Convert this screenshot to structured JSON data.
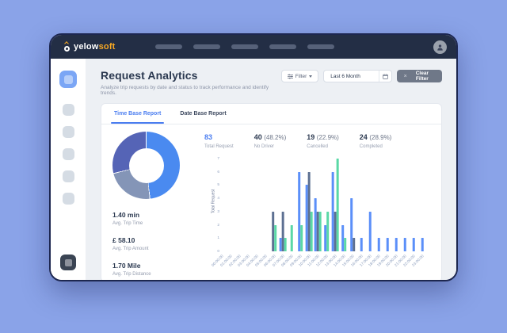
{
  "topbar": {
    "brand_first": "yelow",
    "brand_second": "soft",
    "nav_placeholder_count": 5
  },
  "sidebar": {
    "items": [
      "active",
      "default",
      "default",
      "default",
      "default",
      "default",
      "dark"
    ]
  },
  "header": {
    "title": "Request Analytics",
    "subtitle": "Analyze trip requests by date and status to track performance and identify trends.",
    "filter_label": "Filter",
    "date_range_value": "Last 6 Month",
    "clear_filter_label": "Clear Filter",
    "clear_filter_x": "×"
  },
  "tabs": [
    {
      "label": "Time Base Report",
      "active": true
    },
    {
      "label": "Date Base Report",
      "active": false
    }
  ],
  "stats": [
    {
      "value": "83",
      "pct": "",
      "label": "Total Request",
      "highlight": true
    },
    {
      "value": "40",
      "pct": "(48.2%)",
      "label": "No Driver",
      "highlight": false
    },
    {
      "value": "19",
      "pct": "(22.9%)",
      "label": "Cancelled",
      "highlight": false
    },
    {
      "value": "24",
      "pct": "(28.9%)",
      "label": "Completed",
      "highlight": false
    }
  ],
  "metrics": [
    {
      "value": "1.40 min",
      "label": "Avg. Trip Time"
    },
    {
      "value": "£ 58.10",
      "label": "Avg. Trip Amount"
    },
    {
      "value": "1.70 Mile",
      "label": "Avg. Trip Distance"
    }
  ],
  "colors": {
    "accent_blue": "#4a7df0",
    "navy_text": "#2b3950",
    "muted_text": "#98a0b2"
  },
  "chart_data": [
    {
      "type": "pie",
      "title": "Request status share (donut)",
      "slices": [
        {
          "label": "No Driver",
          "value": 48.2,
          "color": "#4a8af0"
        },
        {
          "label": "Cancelled",
          "value": 22.9,
          "color": "#8495b7"
        },
        {
          "label": "Completed",
          "value": 28.9,
          "color": "#5564b6"
        }
      ]
    },
    {
      "type": "bar",
      "title": "Requests by hour",
      "ylabel": "Total Request",
      "ylim": [
        0,
        7
      ],
      "yticks": [
        0,
        1,
        2,
        3,
        4,
        5,
        6,
        7
      ],
      "grid": false,
      "legend": "none",
      "categories": [
        "00:00:00",
        "01:00:00",
        "02:00:00",
        "03:00:00",
        "04:00:00",
        "05:00:00",
        "06:00:00",
        "07:00:00",
        "08:00:00",
        "09:00:00",
        "10:00:00",
        "11:00:00",
        "12:00:00",
        "13:00:00",
        "14:00:00",
        "15:00:00",
        "16:00:00",
        "17:00:00",
        "18:00:00",
        "19:00:00",
        "20:00:00",
        "21:00:00",
        "22:00:00",
        "23:00:00"
      ],
      "series": [
        {
          "name": "No Driver",
          "color": "#5b8ff9",
          "values": [
            0,
            0,
            0,
            0,
            0,
            0,
            0,
            1,
            0,
            6,
            5,
            4,
            2,
            6,
            2,
            4,
            1,
            3,
            1,
            1,
            1,
            1,
            1,
            1
          ]
        },
        {
          "name": "Cancelled",
          "color": "#5d7092",
          "values": [
            0,
            0,
            0,
            0,
            0,
            0,
            3,
            3,
            0,
            0,
            6,
            3,
            0,
            3,
            0,
            1,
            0,
            0,
            0,
            0,
            0,
            0,
            0,
            0
          ]
        },
        {
          "name": "Completed",
          "color": "#5ad8a6",
          "values": [
            0,
            0,
            0,
            0,
            0,
            0,
            2,
            1,
            2,
            2,
            3,
            3,
            3,
            7,
            1,
            0,
            0,
            0,
            0,
            0,
            0,
            0,
            0,
            0
          ]
        }
      ]
    }
  ]
}
